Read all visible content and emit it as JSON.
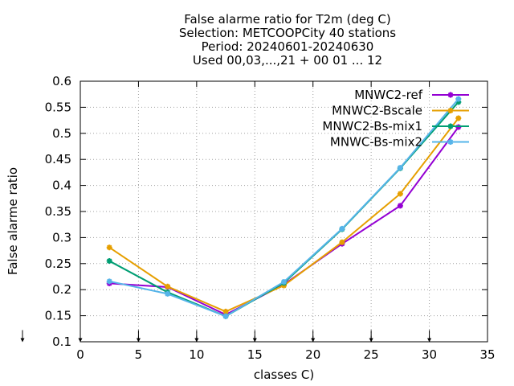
{
  "chart_data": {
    "type": "line",
    "title_lines": [
      "False alarme ratio  for T2m (deg C)",
      "Selection: METCOOPCity      40 stations",
      "Period: 20240601-20240630",
      "Used 00,03,...,21 + 00 01 ... 12"
    ],
    "xlabel": "classes C)",
    "ylabel": "False alarme ratio",
    "xlim": [
      0,
      35
    ],
    "ylim": [
      0.1,
      0.6
    ],
    "xticks": [
      0,
      5,
      10,
      15,
      20,
      25,
      30,
      35
    ],
    "yticks": [
      0.1,
      0.15,
      0.2,
      0.25,
      0.3,
      0.35,
      0.4,
      0.45,
      0.5,
      0.55,
      0.6
    ],
    "ytick_labels": [
      "0.1",
      "0.15",
      "0.2",
      "0.25",
      "0.3",
      "0.35",
      "0.4",
      "0.45",
      "0.5",
      "0.55",
      "0.6"
    ],
    "grid": true,
    "legend_position": "top-right",
    "x": [
      2.5,
      7.5,
      12.5,
      17.5,
      22.5,
      27.5,
      32.5
    ],
    "class_markers_x": [
      0,
      5,
      10,
      15,
      20,
      25,
      30
    ],
    "series": [
      {
        "name": "MNWC2-ref",
        "color": "#9400d3",
        "values": [
          0.212,
          0.205,
          0.152,
          0.21,
          0.288,
          0.361,
          0.512
        ]
      },
      {
        "name": "MNWC2-Bscale",
        "color": "#e69f00",
        "values": [
          0.281,
          0.206,
          0.158,
          0.208,
          0.291,
          0.384,
          0.529
        ]
      },
      {
        "name": "MNWC2-Bs-mix1",
        "color": "#009e73",
        "values": [
          0.255,
          0.195,
          0.149,
          0.213,
          0.316,
          0.433,
          0.56
        ]
      },
      {
        "name": "MNWC-Bs-mix2",
        "color": "#56b4e9",
        "values": [
          0.216,
          0.192,
          0.149,
          0.215,
          0.317,
          0.434,
          0.566
        ]
      }
    ]
  }
}
